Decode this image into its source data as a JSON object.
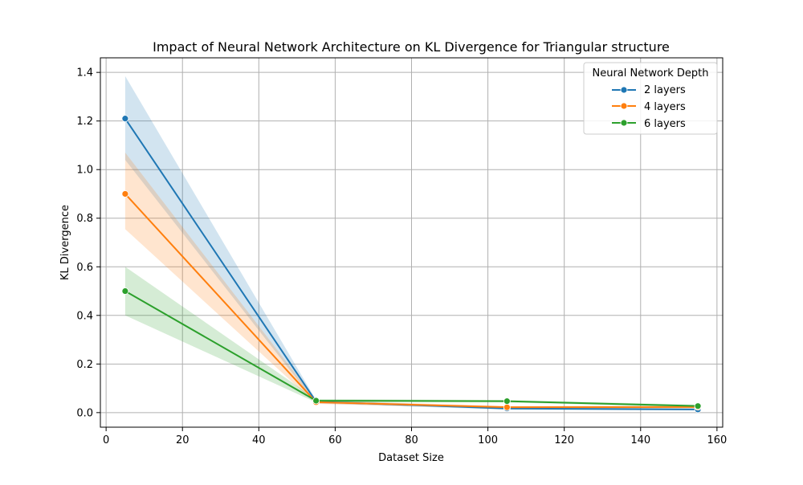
{
  "chart_data": {
    "type": "line",
    "title": "Impact of Neural Network Architecture on KL Divergence for Triangular structure",
    "xlabel": "Dataset Size",
    "ylabel": "KL Divergence",
    "xlim": [
      -1.5,
      161.5
    ],
    "ylim": [
      -0.06,
      1.46
    ],
    "xticks": [
      0,
      20,
      40,
      60,
      80,
      100,
      120,
      140,
      160
    ],
    "yticks": [
      0.0,
      0.2,
      0.4,
      0.6,
      0.8,
      1.0,
      1.2,
      1.4
    ],
    "xtick_labels": [
      "0",
      "20",
      "40",
      "60",
      "80",
      "100",
      "120",
      "140",
      "160"
    ],
    "ytick_labels": [
      "0.0",
      "0.2",
      "0.4",
      "0.6",
      "0.8",
      "1.0",
      "1.2",
      "1.4"
    ],
    "grid": true,
    "legend_title": "Neural Network Depth",
    "legend_position": "top-right",
    "x": [
      5,
      55,
      105,
      155
    ],
    "series": [
      {
        "name": "2 layers",
        "color": "#1f77b4",
        "values": [
          1.21,
          0.045,
          0.017,
          0.013
        ],
        "ci_low": [
          1.04,
          0.038,
          0.012,
          0.009
        ],
        "ci_high": [
          1.385,
          0.052,
          0.022,
          0.017
        ]
      },
      {
        "name": "4 layers",
        "color": "#ff7f0e",
        "values": [
          0.9,
          0.043,
          0.022,
          0.023
        ],
        "ci_low": [
          0.755,
          0.036,
          0.017,
          0.018
        ],
        "ci_high": [
          1.07,
          0.05,
          0.027,
          0.028
        ]
      },
      {
        "name": "6 layers",
        "color": "#2ca02c",
        "values": [
          0.5,
          0.049,
          0.047,
          0.027
        ],
        "ci_low": [
          0.4,
          0.042,
          0.042,
          0.022
        ],
        "ci_high": [
          0.6,
          0.056,
          0.052,
          0.032
        ]
      }
    ]
  }
}
